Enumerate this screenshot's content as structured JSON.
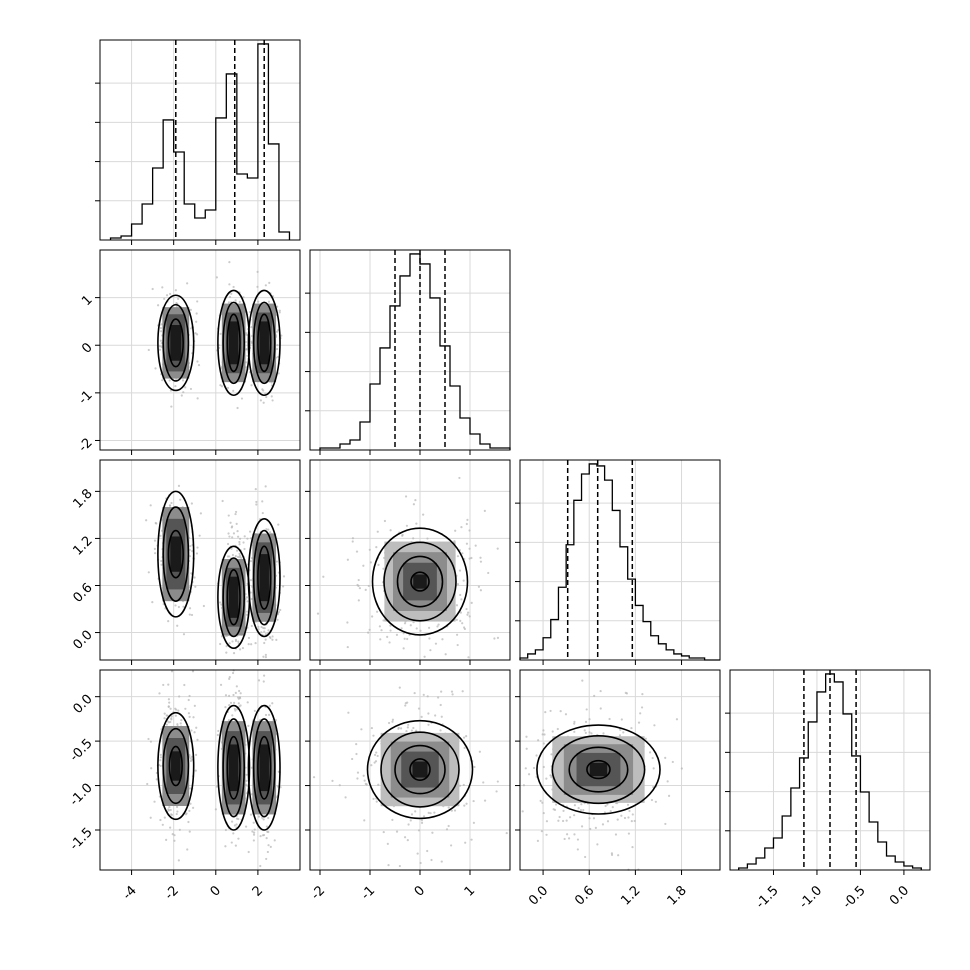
{
  "chart_data": {
    "type": "corner",
    "parameters": 4,
    "grid": true,
    "diagonal": [
      {
        "type": "histogram",
        "xlim": [
          -5.5,
          4.0
        ],
        "bin_edges": [
          -5.0,
          -4.5,
          -4.0,
          -3.5,
          -3.0,
          -2.5,
          -2.0,
          -1.5,
          -1.0,
          -0.5,
          0.0,
          0.5,
          1.0,
          1.5,
          2.0,
          2.5,
          3.0,
          3.5
        ],
        "counts": [
          0.01,
          0.02,
          0.08,
          0.18,
          0.36,
          0.6,
          0.44,
          0.18,
          0.11,
          0.15,
          0.61,
          0.83,
          0.33,
          0.31,
          0.98,
          0.48,
          0.04
        ],
        "quantiles": [
          -1.9,
          0.9,
          2.3
        ]
      },
      {
        "type": "histogram",
        "xlim": [
          -2.2,
          1.8
        ],
        "bin_edges": [
          -2.0,
          -1.8,
          -1.6,
          -1.4,
          -1.2,
          -1.0,
          -0.8,
          -0.6,
          -0.4,
          -0.2,
          0.0,
          0.2,
          0.4,
          0.6,
          0.8,
          1.0,
          1.2,
          1.4,
          1.6,
          1.8
        ],
        "counts": [
          0.01,
          0.01,
          0.03,
          0.05,
          0.14,
          0.33,
          0.51,
          0.72,
          0.87,
          0.98,
          0.93,
          0.76,
          0.52,
          0.32,
          0.16,
          0.08,
          0.03,
          0.01,
          0.01
        ],
        "quantiles": [
          -0.5,
          0.0,
          0.5
        ]
      },
      {
        "type": "histogram",
        "xlim": [
          -0.3,
          2.3
        ],
        "bin_edges": [
          -0.3,
          -0.2,
          -0.1,
          0.0,
          0.1,
          0.2,
          0.3,
          0.4,
          0.5,
          0.6,
          0.7,
          0.8,
          0.9,
          1.0,
          1.1,
          1.2,
          1.3,
          1.4,
          1.5,
          1.6,
          1.7,
          1.8,
          1.9,
          2.0,
          2.1,
          2.2,
          2.3
        ],
        "counts": [
          0.01,
          0.03,
          0.05,
          0.11,
          0.2,
          0.36,
          0.57,
          0.79,
          0.92,
          0.97,
          0.96,
          0.89,
          0.74,
          0.56,
          0.4,
          0.27,
          0.19,
          0.12,
          0.08,
          0.05,
          0.03,
          0.02,
          0.01,
          0.01,
          0.0,
          0.0
        ],
        "quantiles": [
          0.32,
          0.71,
          1.16
        ]
      },
      {
        "type": "histogram",
        "xlim": [
          -2.0,
          0.3
        ],
        "bin_edges": [
          -1.9,
          -1.8,
          -1.7,
          -1.6,
          -1.5,
          -1.4,
          -1.3,
          -1.2,
          -1.1,
          -1.0,
          -0.9,
          -0.8,
          -0.7,
          -0.6,
          -0.5,
          -0.4,
          -0.3,
          -0.2,
          -0.1,
          0.0,
          0.1,
          0.2
        ],
        "counts": [
          0.01,
          0.03,
          0.06,
          0.11,
          0.16,
          0.27,
          0.41,
          0.56,
          0.74,
          0.89,
          0.98,
          0.94,
          0.78,
          0.57,
          0.39,
          0.24,
          0.14,
          0.07,
          0.04,
          0.02,
          0.01
        ],
        "quantiles": [
          -1.15,
          -0.85,
          -0.55
        ]
      }
    ],
    "offdiagonal": [
      {
        "row": 1,
        "col": 0,
        "xlim": [
          -5.5,
          4.0
        ],
        "ylim": [
          -2.2,
          2.0
        ],
        "modes": [
          [
            -1.9,
            0.05,
            0.33,
            0.33
          ],
          [
            0.9,
            0.05,
            0.22,
            0.35
          ],
          [
            2.3,
            0.05,
            0.22,
            0.35
          ]
        ],
        "contours": [
          {
            "cx": -1.9,
            "cy": 0.05,
            "rx": [
              0.85,
              0.6,
              0.35
            ],
            "ry": [
              1.0,
              0.8,
              0.5
            ]
          },
          {
            "cx": 0.85,
            "cy": 0.05,
            "rx": [
              0.75,
              0.5,
              0.3
            ],
            "ry": [
              1.1,
              0.85,
              0.6
            ]
          },
          {
            "cx": 2.3,
            "cy": 0.05,
            "rx": [
              0.75,
              0.5,
              0.3
            ],
            "ry": [
              1.1,
              0.85,
              0.6
            ]
          }
        ]
      },
      {
        "row": 2,
        "col": 0,
        "xlim": [
          -5.5,
          4.0
        ],
        "ylim": [
          -0.35,
          2.2
        ],
        "modes": [
          [
            -1.9,
            1.0,
            0.33,
            0.28
          ],
          [
            0.9,
            0.45,
            0.22,
            0.3
          ],
          [
            2.3,
            0.6,
            0.22,
            0.3
          ]
        ],
        "contours": [
          {
            "cx": -1.9,
            "cy": 1.0,
            "rx": [
              0.85,
              0.6,
              0.35
            ],
            "ry": [
              0.8,
              0.6,
              0.3
            ]
          },
          {
            "cx": 0.85,
            "cy": 0.45,
            "rx": [
              0.75,
              0.5,
              0.3
            ],
            "ry": [
              0.65,
              0.5,
              0.35
            ]
          },
          {
            "cx": 2.3,
            "cy": 0.7,
            "rx": [
              0.75,
              0.5,
              0.3
            ],
            "ry": [
              0.75,
              0.6,
              0.4
            ]
          }
        ]
      },
      {
        "row": 2,
        "col": 1,
        "xlim": [
          -2.2,
          1.8
        ],
        "ylim": [
          -0.35,
          2.2
        ],
        "modes": [
          [
            0.0,
            0.6,
            0.5,
            0.33
          ]
        ],
        "contours": [
          {
            "cx": 0.0,
            "cy": 0.65,
            "rx": [
              0.95,
              0.72,
              0.45,
              0.18
            ],
            "ry": [
              0.68,
              0.5,
              0.32,
              0.12
            ]
          }
        ]
      },
      {
        "row": 3,
        "col": 0,
        "xlim": [
          -5.5,
          4.0
        ],
        "ylim": [
          -1.95,
          0.3
        ],
        "modes": [
          [
            -1.9,
            -0.8,
            0.33,
            0.3
          ],
          [
            0.9,
            -0.8,
            0.22,
            0.3
          ],
          [
            2.3,
            -0.8,
            0.22,
            0.3
          ]
        ],
        "contours": [
          {
            "cx": -1.9,
            "cy": -0.78,
            "rx": [
              0.85,
              0.6,
              0.3
            ],
            "ry": [
              0.6,
              0.42,
              0.22
            ]
          },
          {
            "cx": 0.85,
            "cy": -0.8,
            "rx": [
              0.75,
              0.5,
              0.3
            ],
            "ry": [
              0.7,
              0.55,
              0.35
            ]
          },
          {
            "cx": 2.3,
            "cy": -0.8,
            "rx": [
              0.75,
              0.5,
              0.3
            ],
            "ry": [
              0.7,
              0.55,
              0.35
            ]
          }
        ]
      },
      {
        "row": 3,
        "col": 1,
        "xlim": [
          -2.2,
          1.8
        ],
        "ylim": [
          -1.95,
          0.3
        ],
        "modes": [
          [
            0.0,
            -0.85,
            0.5,
            0.3
          ]
        ],
        "contours": [
          {
            "cx": 0.0,
            "cy": -0.82,
            "rx": [
              1.05,
              0.78,
              0.5,
              0.2
            ],
            "ry": [
              0.55,
              0.42,
              0.27,
              0.12
            ]
          }
        ]
      },
      {
        "row": 3,
        "col": 2,
        "xlim": [
          -0.3,
          2.3
        ],
        "ylim": [
          -1.95,
          0.3
        ],
        "modes": [
          [
            0.68,
            -0.85,
            0.33,
            0.3
          ]
        ],
        "contours": [
          {
            "cx": 0.72,
            "cy": -0.82,
            "rx": [
              0.8,
              0.6,
              0.38,
              0.15
            ],
            "ry": [
              0.5,
              0.38,
              0.25,
              0.1
            ]
          }
        ]
      }
    ],
    "xticks": [
      [
        "-4",
        "-2",
        "0",
        "2"
      ],
      [
        "-2",
        "-1",
        "0",
        "1"
      ],
      [
        "0.0",
        "0.6",
        "1.2",
        "1.8"
      ],
      [
        "-1.5",
        "-1.0",
        "-0.5",
        "0.0"
      ]
    ],
    "yticks": [
      null,
      [
        "1",
        "0",
        "-1",
        "-2"
      ],
      [
        "1.8",
        "1.2",
        "0.6",
        "0.0"
      ],
      [
        "0.0",
        "-0.5",
        "-1.0",
        "-1.5"
      ]
    ]
  }
}
